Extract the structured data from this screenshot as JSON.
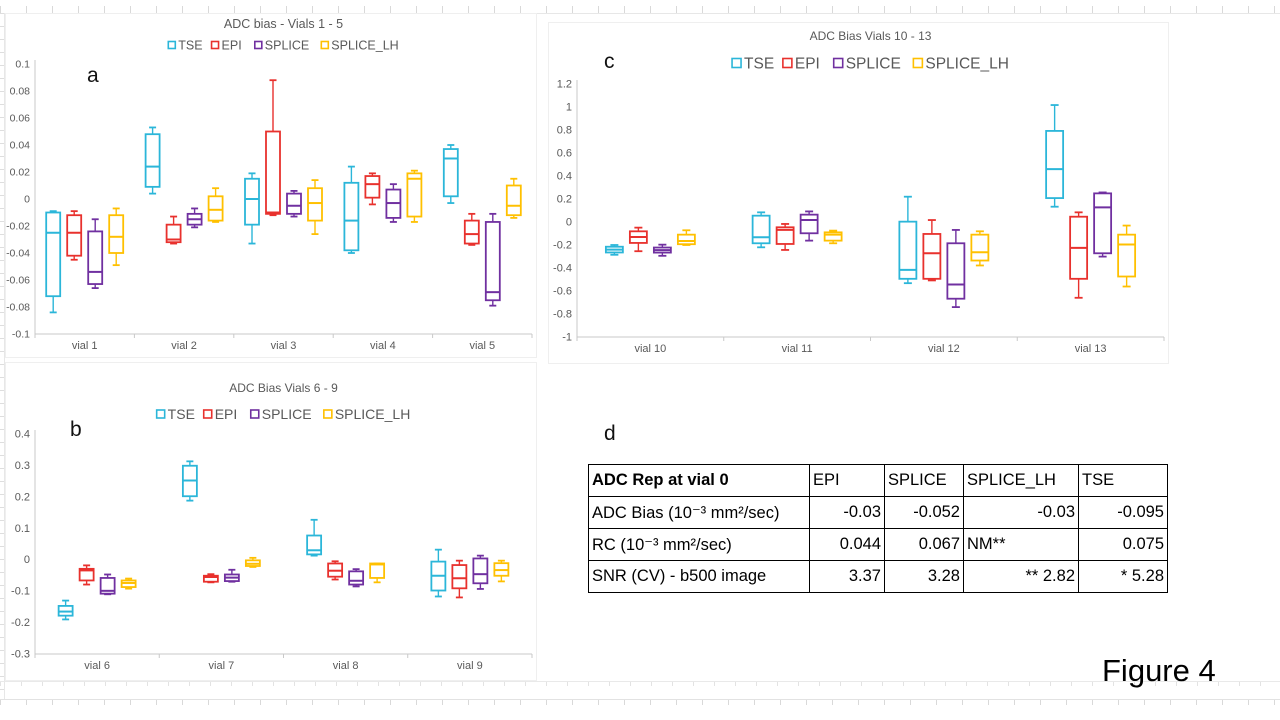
{
  "figure_label": "Figure 4",
  "panels": {
    "a": "a",
    "b": "b",
    "c": "c",
    "d": "d"
  },
  "colors": {
    "TSE": "#2bb6d9",
    "EPI": "#e8312d",
    "SPLICE": "#7030a0",
    "SPLICE_LH": "#ffc000",
    "axis_text": "#595959",
    "axis_line": "#c9c9c9",
    "title_text": "#595959"
  },
  "chart_data": [
    {
      "type": "box",
      "panel": "a",
      "title": "ADC bias - Vials 1 - 5",
      "legend": [
        "TSE",
        "EPI",
        "SPLICE",
        "SPLICE_LH"
      ],
      "legend_position": "top",
      "grid": false,
      "ylim": [
        -0.1,
        0.1
      ],
      "ytick_labels": [
        "0.1",
        "0.08",
        "0.06",
        "0.04",
        "0.02",
        "0",
        "-0.02",
        "-0.04",
        "-0.06",
        "-0.08",
        "-0.1"
      ],
      "categories": [
        "vial 1",
        "vial 2",
        "vial 3",
        "vial 4",
        "vial 5"
      ],
      "box_format": [
        "whisker_low",
        "q1",
        "median",
        "q3",
        "whisker_high"
      ],
      "series": [
        {
          "name": "TSE",
          "boxes": [
            [
              -0.084,
              -0.072,
              -0.025,
              -0.01,
              -0.009
            ],
            [
              0.004,
              0.009,
              0.024,
              0.048,
              0.053
            ],
            [
              -0.033,
              -0.019,
              0.0,
              0.015,
              0.019
            ],
            [
              -0.04,
              -0.038,
              -0.016,
              0.012,
              0.024
            ],
            [
              -0.003,
              0.002,
              0.03,
              0.037,
              0.04
            ]
          ]
        },
        {
          "name": "EPI",
          "boxes": [
            [
              -0.045,
              -0.042,
              -0.025,
              -0.012,
              -0.009
            ],
            [
              -0.033,
              -0.032,
              -0.03,
              -0.019,
              -0.013
            ],
            [
              -0.012,
              -0.011,
              -0.01,
              0.05,
              0.088
            ],
            [
              -0.004,
              0.001,
              0.011,
              0.017,
              0.019
            ],
            [
              -0.034,
              -0.033,
              -0.026,
              -0.016,
              -0.011
            ]
          ]
        },
        {
          "name": "SPLICE",
          "boxes": [
            [
              -0.066,
              -0.063,
              -0.054,
              -0.024,
              -0.015
            ],
            [
              -0.021,
              -0.019,
              -0.015,
              -0.011,
              -0.007
            ],
            [
              -0.013,
              -0.011,
              -0.005,
              0.004,
              0.006
            ],
            [
              -0.017,
              -0.014,
              -0.003,
              0.007,
              0.011
            ],
            [
              -0.079,
              -0.075,
              -0.069,
              -0.017,
              -0.011
            ]
          ]
        },
        {
          "name": "SPLICE_LH",
          "boxes": [
            [
              -0.049,
              -0.04,
              -0.028,
              -0.012,
              -0.007
            ],
            [
              -0.017,
              -0.016,
              -0.008,
              0.002,
              0.008
            ],
            [
              -0.026,
              -0.016,
              -0.003,
              0.008,
              0.014
            ],
            [
              -0.017,
              -0.013,
              0.015,
              0.019,
              0.021
            ],
            [
              -0.014,
              -0.012,
              -0.005,
              0.01,
              0.015
            ]
          ]
        }
      ]
    },
    {
      "type": "box",
      "panel": "b",
      "title": "ADC Bias Vials 6 - 9",
      "legend": [
        "TSE",
        "EPI",
        "SPLICE",
        "SPLICE_LH"
      ],
      "legend_position": "top",
      "grid": false,
      "ylim": [
        -0.3,
        0.4
      ],
      "ytick_labels": [
        "0.4",
        "0.3",
        "0.2",
        "0.1",
        "0",
        "-0.1",
        "-0.2",
        "-0.3"
      ],
      "categories": [
        "vial 6",
        "vial 7",
        "vial 8",
        "vial 9"
      ],
      "box_format": [
        "whisker_low",
        "q1",
        "median",
        "q3",
        "whisker_high"
      ],
      "series": [
        {
          "name": "TSE",
          "boxes": [
            [
              -0.19,
              -0.178,
              -0.165,
              -0.147,
              -0.13
            ],
            [
              0.188,
              0.202,
              0.252,
              0.299,
              0.313
            ],
            [
              0.013,
              0.017,
              0.03,
              0.077,
              0.127
            ],
            [
              -0.117,
              -0.098,
              -0.051,
              -0.006,
              0.032
            ]
          ]
        },
        {
          "name": "EPI",
          "boxes": [
            [
              -0.079,
              -0.066,
              -0.034,
              -0.029,
              -0.018
            ],
            [
              -0.072,
              -0.07,
              -0.055,
              -0.051,
              -0.046
            ],
            [
              -0.063,
              -0.054,
              -0.035,
              -0.012,
              -0.005
            ],
            [
              -0.12,
              -0.091,
              -0.059,
              -0.017,
              -0.003
            ]
          ]
        },
        {
          "name": "SPLICE",
          "boxes": [
            [
              -0.11,
              -0.108,
              -0.099,
              -0.058,
              -0.047
            ],
            [
              -0.07,
              -0.068,
              -0.057,
              -0.047,
              -0.032
            ],
            [
              -0.085,
              -0.079,
              -0.067,
              -0.037,
              -0.03
            ],
            [
              -0.093,
              -0.075,
              -0.046,
              0.004,
              0.013
            ]
          ]
        },
        {
          "name": "SPLICE_LH",
          "boxes": [
            [
              -0.092,
              -0.087,
              -0.074,
              -0.066,
              -0.06
            ],
            [
              -0.023,
              -0.02,
              -0.013,
              -0.002,
              0.006
            ],
            [
              -0.072,
              -0.058,
              -0.015,
              -0.012,
              -0.012
            ],
            [
              -0.069,
              -0.051,
              -0.033,
              -0.011,
              -0.003
            ]
          ]
        }
      ]
    },
    {
      "type": "box",
      "panel": "c",
      "title": "ADC Bias Vials 10 - 13",
      "legend": [
        "TSE",
        "EPI",
        "SPLICE",
        "SPLICE_LH"
      ],
      "legend_position": "top",
      "grid": false,
      "ylim": [
        -1,
        1.2
      ],
      "ytick_labels": [
        "1.2",
        "1",
        "0.8",
        "0.6",
        "0.4",
        "0.2",
        "0",
        "-0.2",
        "-0.4",
        "-0.6",
        "-0.8",
        "-1"
      ],
      "categories": [
        "vial 10",
        "vial 11",
        "vial 12",
        "vial 13"
      ],
      "box_format": [
        "whisker_low",
        "q1",
        "median",
        "q3",
        "whisker_high"
      ],
      "series": [
        {
          "name": "TSE",
          "boxes": [
            [
              -0.285,
              -0.265,
              -0.24,
              -0.215,
              -0.2
            ],
            [
              -0.22,
              -0.185,
              -0.133,
              0.055,
              0.084
            ],
            [
              -0.532,
              -0.494,
              -0.416,
              0.003,
              0.22
            ],
            [
              0.133,
              0.208,
              0.46,
              0.792,
              1.017
            ]
          ]
        },
        {
          "name": "EPI",
          "boxes": [
            [
              -0.254,
              -0.182,
              -0.13,
              -0.081,
              -0.049
            ],
            [
              -0.243,
              -0.191,
              -0.069,
              -0.046,
              -0.017
            ],
            [
              -0.508,
              -0.494,
              -0.272,
              -0.104,
              0.017
            ],
            [
              -0.659,
              -0.494,
              -0.225,
              0.046,
              0.084
            ]
          ]
        },
        {
          "name": "SPLICE",
          "boxes": [
            [
              -0.294,
              -0.266,
              -0.245,
              -0.222,
              -0.197
            ],
            [
              -0.162,
              -0.098,
              0.017,
              0.064,
              0.092
            ],
            [
              -0.74,
              -0.667,
              -0.543,
              -0.185,
              -0.069
            ],
            [
              -0.301,
              -0.272,
              0.127,
              0.249,
              0.257
            ]
          ]
        },
        {
          "name": "SPLICE_LH",
          "boxes": [
            [
              -0.2,
              -0.193,
              -0.165,
              -0.11,
              -0.072
            ],
            [
              -0.185,
              -0.162,
              -0.11,
              -0.09,
              -0.075
            ],
            [
              -0.378,
              -0.335,
              -0.263,
              -0.11,
              -0.081
            ],
            [
              -0.561,
              -0.474,
              -0.196,
              -0.11,
              -0.031
            ]
          ]
        }
      ]
    }
  ],
  "table": {
    "panel": "d",
    "header": [
      "ADC Rep at vial 0",
      "EPI",
      "SPLICE",
      "SPLICE_LH",
      "TSE"
    ],
    "rows": [
      {
        "label": "ADC Bias (10⁻³ mm²/sec)",
        "values": [
          "-0.03",
          "-0.052",
          "-0.03",
          "-0.095"
        ]
      },
      {
        "label": "RC (10⁻³ mm²/sec)",
        "values": [
          "0.044",
          "0.067",
          "NM**",
          "0.075"
        ]
      },
      {
        "label": "SNR (CV) - b500 image",
        "values": [
          "3.37",
          "3.28",
          "** 2.82",
          "* 5.28"
        ]
      }
    ]
  }
}
